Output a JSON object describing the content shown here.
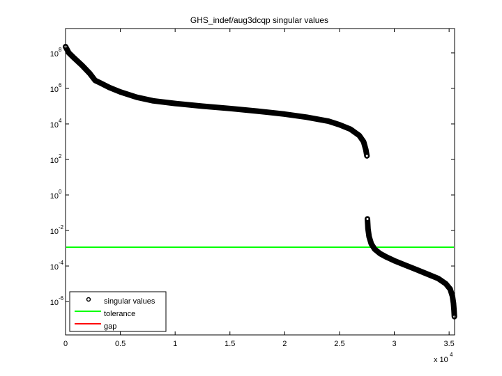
{
  "chart_data": {
    "type": "scatter",
    "title": "GHS_indef/aug3dcqp singular values",
    "xlabel": "",
    "ylabel": "",
    "x_multiplier_label": "x 10^4",
    "x_multiplier_base": "x 10",
    "x_multiplier_exp": "4",
    "xlim": [
      0,
      35500
    ],
    "ylim_log10": [
      -7.88,
      9.37
    ],
    "yscale": "log",
    "grid": false,
    "legend_position": "lower left",
    "x_ticks": [
      {
        "value": 0,
        "label": "0"
      },
      {
        "value": 5000,
        "label": "0.5"
      },
      {
        "value": 10000,
        "label": "1"
      },
      {
        "value": 15000,
        "label": "1.5"
      },
      {
        "value": 20000,
        "label": "2"
      },
      {
        "value": 25000,
        "label": "2.5"
      },
      {
        "value": 30000,
        "label": "3"
      },
      {
        "value": 35000,
        "label": "3.5"
      }
    ],
    "y_ticks": [
      {
        "log10": 8,
        "base": "10",
        "exp": "8"
      },
      {
        "log10": 6,
        "base": "10",
        "exp": "6"
      },
      {
        "log10": 4,
        "base": "10",
        "exp": "4"
      },
      {
        "log10": 2,
        "base": "10",
        "exp": "2"
      },
      {
        "log10": 0,
        "base": "10",
        "exp": "0"
      },
      {
        "log10": -2,
        "base": "10",
        "exp": "-2"
      },
      {
        "log10": -4,
        "base": "10",
        "exp": "-4"
      },
      {
        "log10": -6,
        "base": "10",
        "exp": "-6"
      }
    ],
    "series": [
      {
        "name": "singular values",
        "marker": "circle",
        "color": "#000000",
        "segments": [
          {
            "x": [
              0,
              300,
              800,
              1500,
              2200,
              2700,
              3200,
              4000,
              5000,
              6500,
              8000,
              10000,
              12500,
              15000,
              17500,
              20000,
              22000,
              24000,
              25000,
              26000,
              26800,
              27200,
              27400,
              27500
            ],
            "log10_y": [
              8.35,
              8.0,
              7.7,
              7.3,
              6.85,
              6.45,
              6.3,
              6.05,
              5.8,
              5.5,
              5.3,
              5.15,
              5.0,
              4.87,
              4.72,
              4.55,
              4.38,
              4.15,
              3.95,
              3.7,
              3.35,
              3.0,
              2.55,
              2.2
            ]
          },
          {
            "x": [
              27550,
              27600,
              27700,
              27900,
              28200,
              28700,
              29300,
              30000,
              31000,
              32000,
              33000,
              34000,
              34700,
              35100,
              35300,
              35400,
              35450,
              35480
            ],
            "log10_y": [
              -1.35,
              -1.9,
              -2.35,
              -2.75,
              -3.05,
              -3.3,
              -3.5,
              -3.7,
              -3.95,
              -4.2,
              -4.45,
              -4.7,
              -5.0,
              -5.3,
              -5.7,
              -6.1,
              -6.5,
              -6.85
            ]
          }
        ]
      },
      {
        "name": "tolerance",
        "type": "hline",
        "color": "#00ff00",
        "log10_y": -2.94,
        "value": 0.00115
      },
      {
        "name": "gap",
        "type": "line",
        "color": "#ff0000",
        "values": []
      }
    ],
    "legend": [
      {
        "label": "singular values",
        "symbol": "circle",
        "color": "#000000"
      },
      {
        "label": "tolerance",
        "symbol": "line",
        "color": "#00ff00"
      },
      {
        "label": "gap",
        "symbol": "line",
        "color": "#ff0000"
      }
    ]
  }
}
